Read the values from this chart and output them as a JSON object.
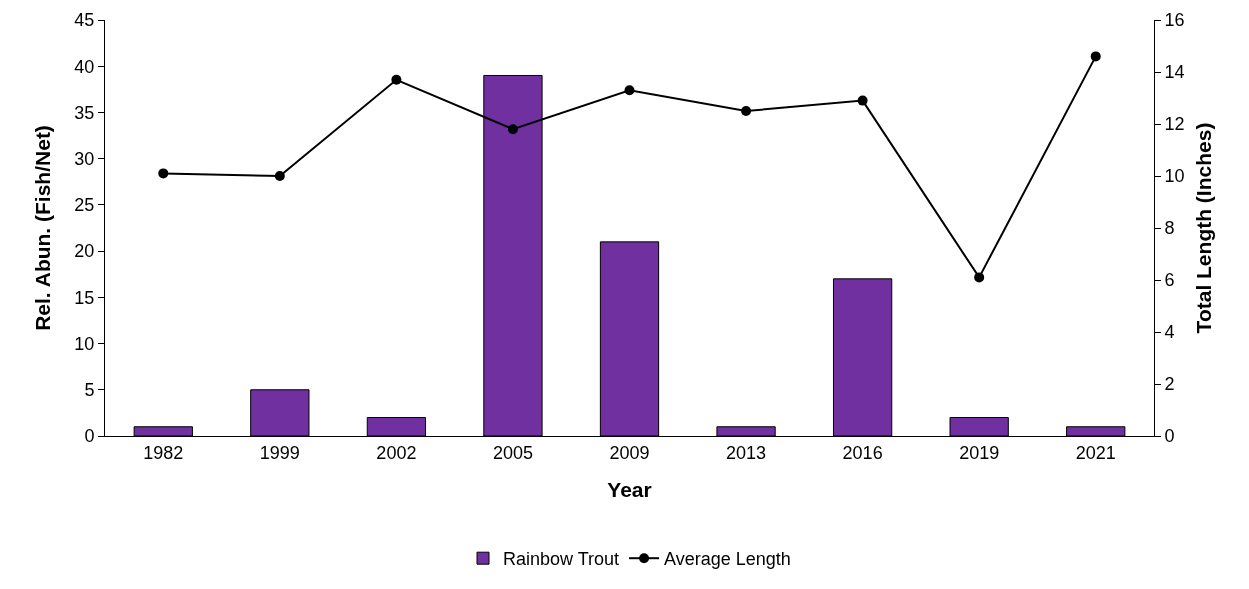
{
  "chart_data": {
    "type": "bar",
    "xlabel": "Year",
    "ylabel": "Rel. Abun. (Fish/Net)",
    "y2label": "Total Length (Inches)",
    "categories": [
      "1982",
      "1999",
      "2002",
      "2005",
      "2009",
      "2013",
      "2016",
      "2019",
      "2021"
    ],
    "series": [
      {
        "name": "Rainbow Trout",
        "color": "#7030a0",
        "values": [
          1,
          5,
          2,
          39,
          21,
          1,
          17,
          2,
          1
        ]
      },
      {
        "name": "Average Length",
        "type": "line",
        "axis": "y2",
        "color": "#000000",
        "marker": "circle",
        "line_style": "solid",
        "values": [
          10.1,
          10.0,
          13.7,
          11.8,
          13.3,
          12.5,
          12.9,
          6.1,
          14.6
        ]
      }
    ],
    "ylim": [
      0,
      45
    ],
    "yticks": [
      0,
      5,
      10,
      15,
      20,
      25,
      30,
      35,
      40,
      45
    ],
    "y2lim": [
      0,
      16
    ],
    "y2ticks": [
      0,
      2,
      4,
      6,
      8,
      10,
      12,
      14,
      16
    ],
    "grid": false,
    "legend": "bottom"
  }
}
